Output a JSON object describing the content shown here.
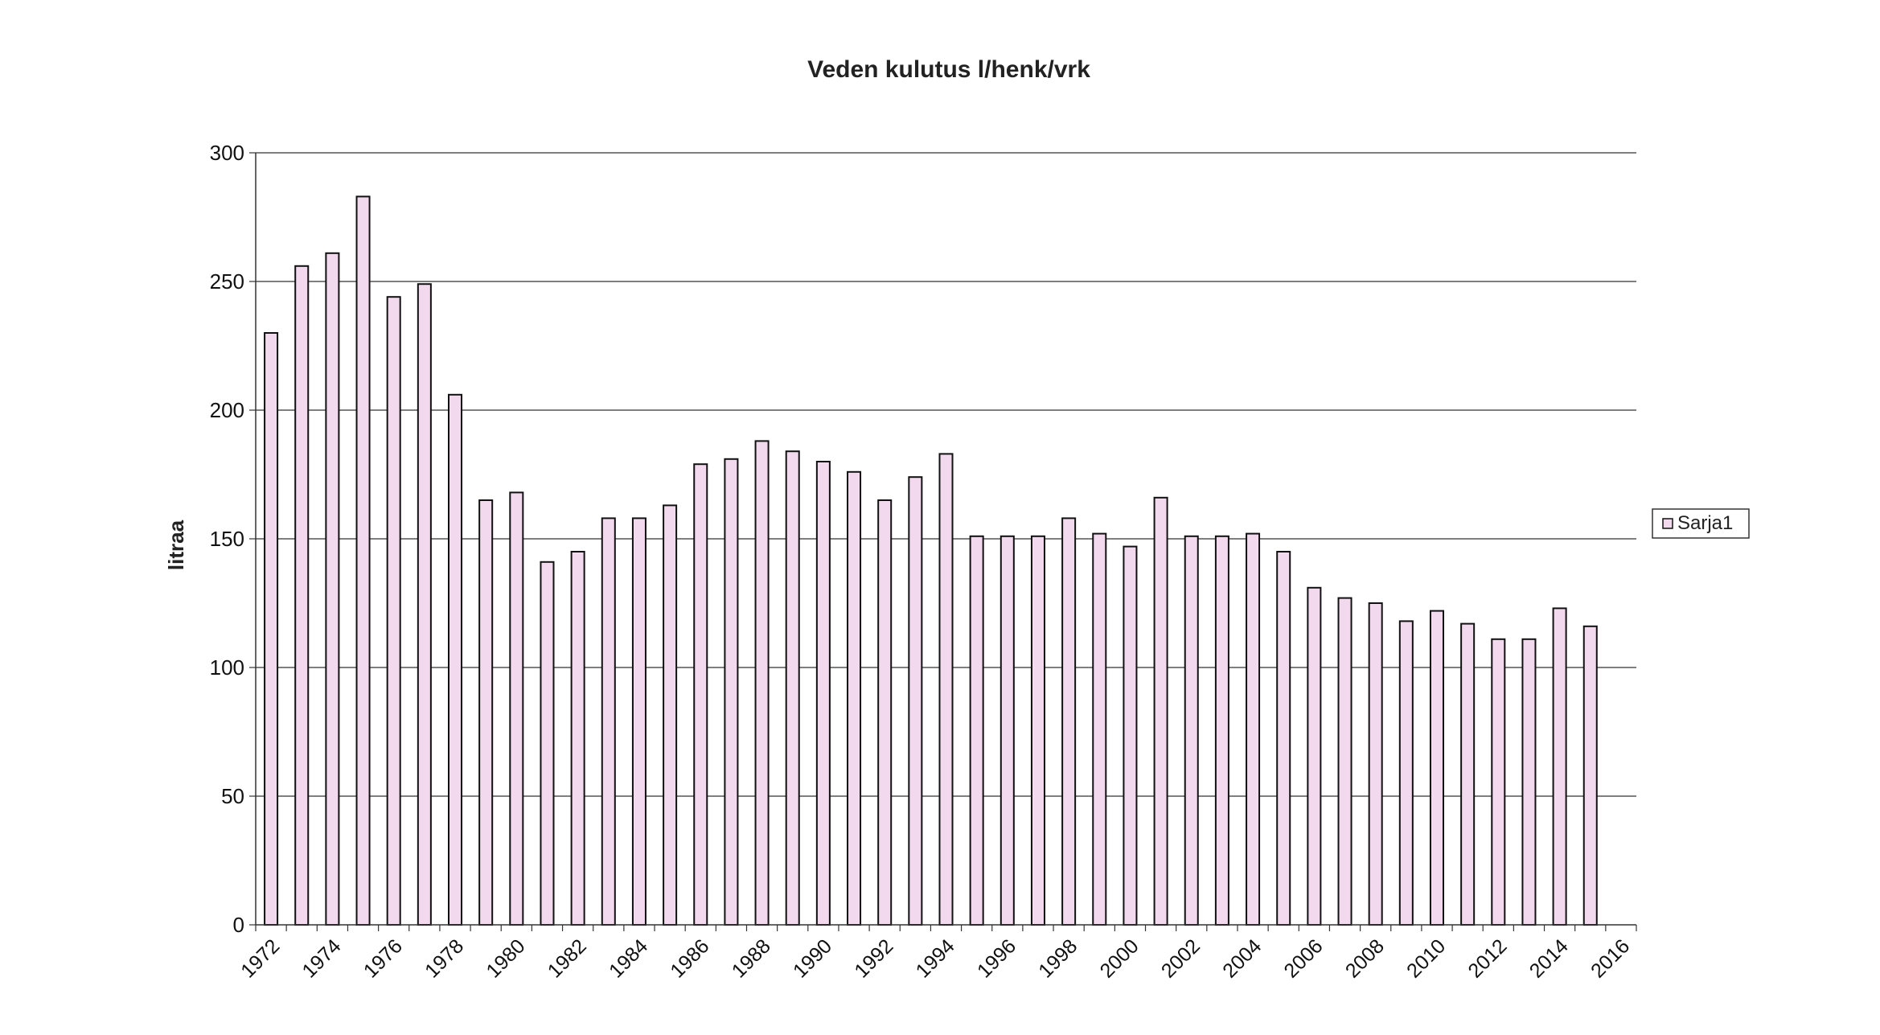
{
  "chart_data": {
    "type": "bar",
    "title": "Veden kulutus l/henk/vrk",
    "xlabel": "",
    "ylabel": "litraa",
    "ylim": [
      0,
      300
    ],
    "yticks": [
      0,
      50,
      100,
      150,
      200,
      250,
      300
    ],
    "grid": true,
    "legend_position": "right",
    "x_tick_labels": [
      "1972",
      "1974",
      "1976",
      "1978",
      "1980",
      "1982",
      "1984",
      "1986",
      "1988",
      "1990",
      "1992",
      "1994",
      "1996",
      "1998",
      "2000",
      "2002",
      "2004",
      "2006",
      "2008",
      "2010",
      "2012",
      "2014",
      "2016"
    ],
    "categories": [
      1972,
      1973,
      1974,
      1975,
      1976,
      1977,
      1978,
      1979,
      1980,
      1981,
      1982,
      1983,
      1984,
      1985,
      1986,
      1987,
      1988,
      1989,
      1990,
      1991,
      1992,
      1993,
      1994,
      1995,
      1996,
      1997,
      1998,
      1999,
      2000,
      2001,
      2002,
      2003,
      2004,
      2005,
      2006,
      2007,
      2008,
      2009,
      2010,
      2011,
      2012,
      2013,
      2014,
      2015,
      2016
    ],
    "series": [
      {
        "name": "Sarja1",
        "color": "#f2d9ee",
        "values": [
          230,
          256,
          261,
          283,
          244,
          249,
          206,
          165,
          168,
          141,
          145,
          158,
          158,
          163,
          179,
          181,
          188,
          184,
          180,
          176,
          165,
          174,
          183,
          151,
          151,
          151,
          158,
          152,
          147,
          166,
          151,
          151,
          152,
          145,
          131,
          127,
          125,
          118,
          122,
          117,
          111,
          111,
          123,
          116,
          null
        ]
      }
    ]
  },
  "colors": {
    "bar_fill": "#f2d9ee",
    "bar_stroke": "#111111",
    "grid": "#333333",
    "text": "#111111"
  }
}
